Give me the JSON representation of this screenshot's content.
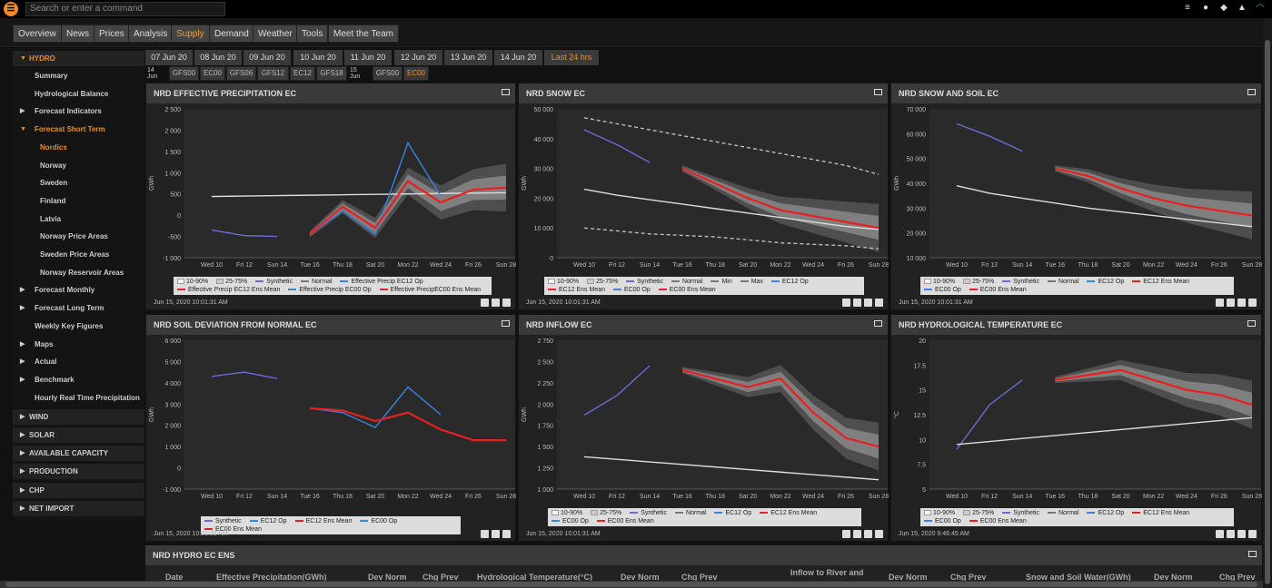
{
  "topbar": {
    "search_placeholder": "Search or enter a command"
  },
  "nav": {
    "tabs": [
      "Overview",
      "News",
      "Prices",
      "Analysis",
      "Supply",
      "Demand",
      "Weather",
      "Tools",
      "Meet the Team"
    ],
    "active": "Supply"
  },
  "sidebar": {
    "hydro": "HYDRO",
    "items": [
      "Summary",
      "Hydrological Balance",
      "Forecast Indicators",
      "Forecast Short Term",
      "Nordics",
      "Norway",
      "Sweden",
      "Finland",
      "Latvia",
      "Norway Price Areas",
      "Sweden Price Areas",
      "Norway Reservoir Areas",
      "Forecast Monthly",
      "Forecast Long Term",
      "Weekly Key Figures",
      "Maps",
      "Actual",
      "Benchmark",
      "Hourly Real Time Precipitation"
    ],
    "sections": [
      "WIND",
      "SOLAR",
      "AVAILABLE CAPACITY",
      "PRODUCTION",
      "CHP",
      "NET IMPORT"
    ]
  },
  "dates": [
    "07 Jun 20",
    "08 Jun 20",
    "09 Jun 20",
    "10 Jun 20",
    "11 Jun 20",
    "12 Jun 20",
    "13 Jun 20",
    "14 Jun 20",
    "Last 24 hrs"
  ],
  "models": {
    "label14": "14 Jun",
    "m14": [
      "GFS00",
      "EC00",
      "GFS06",
      "GFS12",
      "EC12",
      "GFS18"
    ],
    "label15": "15 Jun",
    "m15": [
      "GFS00",
      "EC00"
    ]
  },
  "xticks": [
    "Wed 10",
    "Fri 12",
    "Sun 14",
    "Tue 16",
    "Thu 18",
    "Sat 20",
    "Mon 22",
    "Wed 24",
    "Fri 26",
    "Sun 28"
  ],
  "panels": {
    "p1": {
      "title": "NRD EFFECTIVE PRECIPITATION EC",
      "ylabel": "GWh",
      "yticks": [
        "2 500",
        "2 000",
        "1 500",
        "1 000",
        "500",
        "0",
        "-500",
        "-1 000"
      ],
      "timestamp": "Jun 15, 2020 10:01:31 AM",
      "legend": [
        "10-90%",
        "25-75%",
        "Synthetic",
        "Normal",
        "Effective Precip EC12 Op",
        "Effective Precip EC12 Ens Mean",
        "Effective Precip EC00 Op",
        "Effective PrecipEC00 Ens Mean"
      ]
    },
    "p2": {
      "title": "NRD SNOW EC",
      "ylabel": "GWh",
      "yticks": [
        "50 000",
        "40 000",
        "30 000",
        "20 000",
        "10 000",
        "0"
      ],
      "timestamp": "Jun 15, 2020 10:01:31 AM",
      "legend": [
        "10-90%",
        "25-75%",
        "Synthetic",
        "Normal",
        "Min",
        "Max",
        "EC12 Op",
        "EC12 Ens Mean",
        "EC00 Op",
        "EC00 Ens Mean"
      ]
    },
    "p3": {
      "title": "NRD SNOW AND SOIL EC",
      "ylabel": "GWh",
      "yticks": [
        "70 000",
        "60 000",
        "50 000",
        "40 000",
        "30 000",
        "20 000",
        "10 000"
      ],
      "timestamp": "Jun 15, 2020 10:01:31 AM",
      "legend": [
        "10-90%",
        "25-75%",
        "Synthetic",
        "Normal",
        "EC12 Op",
        "EC12 Ens Mean",
        "EC00 Op",
        "EC00 Ens Mean"
      ]
    },
    "p4": {
      "title": "NRD SOIL DEVIATION FROM NORMAL EC",
      "ylabel": "GWh",
      "yticks": [
        "6 000",
        "5 000",
        "4 000",
        "3 000",
        "2 000",
        "1 000",
        "0",
        "-1 000"
      ],
      "timestamp": "Jun 15, 2020 10:01:31 AM",
      "legend": [
        "Synthetic",
        "EC12 Op",
        "EC12 Ens Mean",
        "EC00 Op",
        "EC00 Ens Mean"
      ]
    },
    "p5": {
      "title": "NRD INFLOW EC",
      "ylabel": "GWh",
      "yticks": [
        "2 750",
        "2 500",
        "2 250",
        "2 000",
        "1 750",
        "1 500",
        "1 250",
        "1 000"
      ],
      "timestamp": "Jun 15, 2020 10:01:31 AM",
      "legend": [
        "10-90%",
        "25-75%",
        "Synthetic",
        "Normal",
        "EC12 Op",
        "EC12 Ens Mean",
        "EC00 Op",
        "EC00 Ens Mean"
      ]
    },
    "p6": {
      "title": "NRD HYDROLOGICAL TEMPERATURE EC",
      "ylabel": "°C",
      "yticks": [
        "20",
        "17.5",
        "15",
        "12.5",
        "10",
        "7.5",
        "5"
      ],
      "timestamp": "Jun 15, 2020 9:46:45 AM",
      "legend": [
        "10-90%",
        "25-75%",
        "Synthetic",
        "Normal",
        "EC12 Op",
        "EC12 Ens Mean",
        "EC00 Op",
        "EC00 Ens Mean"
      ]
    }
  },
  "table": {
    "title": "NRD HYDRO EC ENS",
    "headers": [
      "Date",
      "Effective Precipitation(GWh)",
      "Dev Norm",
      "Chg Prev",
      "Hydrological Temperature(°C)",
      "Dev Norm",
      "Chg Prev",
      "Inflow to River and",
      "Dev Norm",
      "Chg Prev",
      "Snow and Soil Water(GWh)",
      "Dev Norm",
      "Chg Prev"
    ]
  },
  "colors": {
    "accent": "#f08c28",
    "ec12op": "#3b83e0",
    "ec12mean": "#e82020",
    "synthetic": "#6a6ad8",
    "normal": "#dddddd",
    "band_outer": "#555555",
    "band_inner": "#888888"
  },
  "chart_data": [
    {
      "type": "line",
      "title": "NRD EFFECTIVE PRECIPITATION EC",
      "ylabel": "GWh",
      "ylim": [
        -1000,
        2500
      ],
      "x": [
        "Wed 10",
        "Fri 12",
        "Sun 14",
        "Tue 16",
        "Thu 18",
        "Sat 20",
        "Mon 22",
        "Wed 24",
        "Fri 26",
        "Sun 28"
      ],
      "series": [
        {
          "name": "Synthetic",
          "values": [
            -350,
            -480,
            -500,
            null,
            null,
            null,
            null,
            null,
            null,
            null
          ]
        },
        {
          "name": "Normal",
          "values": [
            440,
            450,
            460,
            470,
            480,
            490,
            500,
            510,
            520,
            530
          ]
        },
        {
          "name": "Effective Precip EC12 Op",
          "values": [
            null,
            null,
            null,
            -450,
            100,
            -450,
            1700,
            450,
            null,
            null
          ]
        },
        {
          "name": "Effective Precip EC12 Ens Mean",
          "values": [
            null,
            null,
            null,
            -450,
            200,
            -300,
            800,
            300,
            600,
            650
          ]
        }
      ]
    },
    {
      "type": "line",
      "title": "NRD SNOW EC",
      "ylabel": "GWh",
      "ylim": [
        0,
        50000
      ],
      "x": [
        "Wed 10",
        "Fri 12",
        "Sun 14",
        "Tue 16",
        "Thu 18",
        "Sat 20",
        "Mon 22",
        "Wed 24",
        "Fri 26",
        "Sun 28"
      ],
      "series": [
        {
          "name": "Synthetic",
          "values": [
            43000,
            38000,
            32000,
            null,
            null,
            null,
            null,
            null,
            null,
            null
          ]
        },
        {
          "name": "Normal",
          "values": [
            23000,
            21000,
            19500,
            18000,
            16500,
            15000,
            13500,
            12000,
            10500,
            9500
          ]
        },
        {
          "name": "Max",
          "values": [
            47000,
            45000,
            43000,
            41000,
            39000,
            37000,
            35000,
            33000,
            31000,
            28000
          ]
        },
        {
          "name": "Min",
          "values": [
            10000,
            9000,
            8000,
            7500,
            7000,
            6000,
            5000,
            4500,
            4000,
            3000
          ]
        },
        {
          "name": "EC12 Ens Mean",
          "values": [
            null,
            null,
            null,
            30000,
            25000,
            20000,
            16000,
            14000,
            12000,
            10000
          ]
        }
      ]
    },
    {
      "type": "line",
      "title": "NRD SNOW AND SOIL EC",
      "ylabel": "GWh",
      "ylim": [
        10000,
        70000
      ],
      "x": [
        "Wed 10",
        "Fri 12",
        "Sun 14",
        "Tue 16",
        "Thu 18",
        "Sat 20",
        "Mon 22",
        "Wed 24",
        "Fri 26",
        "Sun 28"
      ],
      "series": [
        {
          "name": "Synthetic",
          "values": [
            64000,
            59000,
            53000,
            null,
            null,
            null,
            null,
            null,
            null,
            null
          ]
        },
        {
          "name": "Normal",
          "values": [
            39000,
            36000,
            34000,
            32000,
            30000,
            28500,
            27000,
            25500,
            24000,
            22500
          ]
        },
        {
          "name": "EC12 Ens Mean",
          "values": [
            null,
            null,
            null,
            46000,
            43000,
            38000,
            34000,
            31000,
            29000,
            27000
          ]
        }
      ]
    },
    {
      "type": "line",
      "title": "NRD SOIL DEVIATION FROM NORMAL EC",
      "ylabel": "GWh",
      "ylim": [
        -1000,
        6000
      ],
      "x": [
        "Wed 10",
        "Fri 12",
        "Sun 14",
        "Tue 16",
        "Thu 18",
        "Sat 20",
        "Mon 22",
        "Wed 24",
        "Fri 26",
        "Sun 28"
      ],
      "series": [
        {
          "name": "Synthetic",
          "values": [
            4300,
            4500,
            4200,
            null,
            null,
            null,
            null,
            null,
            null,
            null
          ]
        },
        {
          "name": "EC12 Op",
          "values": [
            null,
            null,
            null,
            2800,
            2600,
            1900,
            3800,
            2500,
            null,
            null
          ]
        },
        {
          "name": "EC12 Ens Mean",
          "values": [
            null,
            null,
            null,
            2800,
            2700,
            2200,
            2600,
            1800,
            1300,
            1300
          ]
        }
      ]
    },
    {
      "type": "line",
      "title": "NRD INFLOW EC",
      "ylabel": "GWh",
      "ylim": [
        1000,
        2750
      ],
      "x": [
        "Wed 10",
        "Fri 12",
        "Sun 14",
        "Tue 16",
        "Thu 18",
        "Sat 20",
        "Mon 22",
        "Wed 24",
        "Fri 26",
        "Sun 28"
      ],
      "series": [
        {
          "name": "Synthetic",
          "values": [
            1870,
            2100,
            2450,
            null,
            null,
            null,
            null,
            null,
            null,
            null
          ]
        },
        {
          "name": "Normal",
          "values": [
            1380,
            1350,
            1320,
            1290,
            1260,
            1230,
            1200,
            1170,
            1140,
            1110
          ]
        },
        {
          "name": "EC12 Ens Mean",
          "values": [
            null,
            null,
            null,
            2400,
            2300,
            2200,
            2300,
            1900,
            1600,
            1500
          ]
        }
      ]
    },
    {
      "type": "line",
      "title": "NRD HYDROLOGICAL TEMPERATURE EC",
      "ylabel": "°C",
      "ylim": [
        5,
        20
      ],
      "x": [
        "Wed 10",
        "Fri 12",
        "Sun 14",
        "Tue 16",
        "Thu 18",
        "Sat 20",
        "Mon 22",
        "Wed 24",
        "Fri 26",
        "Sun 28"
      ],
      "series": [
        {
          "name": "Synthetic",
          "values": [
            9,
            13.5,
            16,
            null,
            null,
            null,
            null,
            null,
            null,
            null
          ]
        },
        {
          "name": "Normal",
          "values": [
            9.5,
            9.8,
            10.1,
            10.4,
            10.7,
            11,
            11.3,
            11.6,
            11.9,
            12.2
          ]
        },
        {
          "name": "EC12 Ens Mean",
          "values": [
            null,
            null,
            null,
            16,
            16.5,
            17,
            16,
            15,
            14.5,
            13.5
          ]
        }
      ]
    }
  ]
}
